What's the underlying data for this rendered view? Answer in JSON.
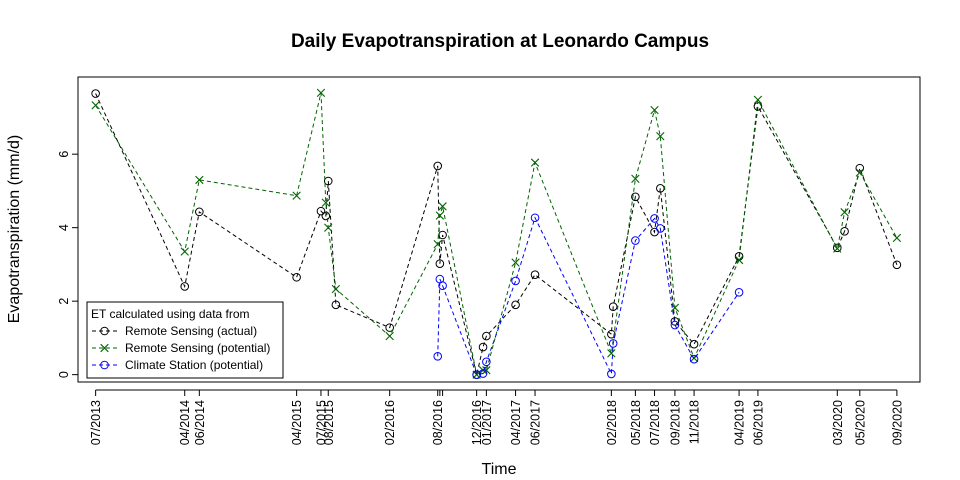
{
  "chart_data": {
    "type": "line",
    "title": "Daily Evapotranspiration at Leonardo Campus",
    "xlabel": "Time",
    "ylabel": "Evapotranspiration (mm/d)",
    "ylim": [
      -0.2,
      8.1
    ],
    "yticks": [
      0,
      2,
      4,
      6
    ],
    "xticks": [
      {
        "date": "2013-07-05",
        "label": "07/2013"
      },
      {
        "date": "2014-04-24",
        "label": "04/2014"
      },
      {
        "date": "2014-06-11",
        "label": "06/2014"
      },
      {
        "date": "2015-04-27",
        "label": "04/2015"
      },
      {
        "date": "2015-07-16",
        "label": "07/2015"
      },
      {
        "date": "2015-08-09",
        "label": "08/2015"
      },
      {
        "date": "2016-02-27",
        "label": "02/2016"
      },
      {
        "date": "2016-08-03",
        "label": "08/2016"
      },
      {
        "date": "2016-08-10",
        "label": ""
      },
      {
        "date": "2016-08-19",
        "label": ""
      },
      {
        "date": "2016-12-09",
        "label": "12/2016"
      },
      {
        "date": "2017-01-10",
        "label": "01/2017"
      },
      {
        "date": "2017-04-16",
        "label": "04/2017"
      },
      {
        "date": "2017-06-19",
        "label": "06/2017"
      },
      {
        "date": "2018-02-25",
        "label": "02/2018"
      },
      {
        "date": "2018-05-15",
        "label": "05/2018"
      },
      {
        "date": "2018-07-17",
        "label": "07/2018"
      },
      {
        "date": "2018-09-22",
        "label": "09/2018"
      },
      {
        "date": "2018-11-24",
        "label": "11/2018"
      },
      {
        "date": "2019-04-21",
        "label": "04/2019"
      },
      {
        "date": "2019-06-22",
        "label": "06/2019"
      },
      {
        "date": "2020-03-09",
        "label": "03/2020"
      },
      {
        "date": "2020-05-22",
        "label": "05/2020"
      },
      {
        "date": "2020-09-21",
        "label": "09/2020"
      }
    ],
    "series": [
      {
        "name": "Remote Sensing (actual)",
        "color": "#000000",
        "marker": "circle",
        "points": [
          [
            "2013-07-05",
            7.65
          ],
          [
            "2014-04-24",
            2.4
          ],
          [
            "2014-06-11",
            4.43
          ],
          [
            "2015-04-27",
            2.65
          ],
          [
            "2015-07-16",
            4.45
          ],
          [
            "2015-08-01",
            4.32
          ],
          [
            "2015-08-09",
            5.27
          ],
          [
            "2015-09-03",
            1.9
          ],
          [
            "2016-02-27",
            1.28
          ],
          [
            "2016-08-03",
            5.68
          ],
          [
            "2016-08-10",
            3.02
          ],
          [
            "2016-08-19",
            3.8
          ],
          [
            "2016-12-09",
            0.0
          ],
          [
            "2016-12-30",
            0.75
          ],
          [
            "2017-01-10",
            1.05
          ],
          [
            "2017-04-16",
            1.9
          ],
          [
            "2017-06-19",
            2.72
          ],
          [
            "2018-02-25",
            1.1
          ],
          [
            "2018-03-03",
            1.85
          ],
          [
            "2018-05-15",
            4.84
          ],
          [
            "2018-07-17",
            3.88
          ],
          [
            "2018-08-05",
            5.07
          ],
          [
            "2018-09-22",
            1.45
          ],
          [
            "2018-11-24",
            0.83
          ],
          [
            "2019-04-21",
            3.22
          ],
          [
            "2019-06-22",
            7.3
          ],
          [
            "2020-03-09",
            3.45
          ],
          [
            "2020-04-02",
            3.9
          ],
          [
            "2020-05-22",
            5.62
          ],
          [
            "2020-09-21",
            2.99
          ]
        ]
      },
      {
        "name": "Remote Sensing (potential)",
        "color": "#006400",
        "marker": "cross",
        "points": [
          [
            "2013-07-05",
            7.33
          ],
          [
            "2014-04-24",
            3.35
          ],
          [
            "2014-06-11",
            5.3
          ],
          [
            "2015-04-27",
            4.87
          ],
          [
            "2015-07-16",
            7.67
          ],
          [
            "2015-08-01",
            4.68
          ],
          [
            "2015-08-09",
            4.0
          ],
          [
            "2015-09-03",
            2.33
          ],
          [
            "2016-02-27",
            1.05
          ],
          [
            "2016-08-03",
            3.55
          ],
          [
            "2016-08-10",
            4.33
          ],
          [
            "2016-08-19",
            4.58
          ],
          [
            "2016-12-09",
            0.0
          ],
          [
            "2016-12-30",
            0.12
          ],
          [
            "2017-01-10",
            0.12
          ],
          [
            "2017-04-16",
            3.05
          ],
          [
            "2017-06-19",
            5.77
          ],
          [
            "2018-02-25",
            0.58
          ],
          [
            "2018-05-15",
            5.33
          ],
          [
            "2018-07-17",
            7.2
          ],
          [
            "2018-08-05",
            6.49
          ],
          [
            "2018-09-22",
            1.82
          ],
          [
            "2018-11-24",
            0.45
          ],
          [
            "2019-04-21",
            3.12
          ],
          [
            "2019-06-22",
            7.48
          ],
          [
            "2020-03-09",
            3.43
          ],
          [
            "2020-04-02",
            4.42
          ],
          [
            "2020-05-22",
            5.5
          ],
          [
            "2020-09-21",
            3.72
          ]
        ]
      },
      {
        "name": "Climate Station (potential)",
        "color": "#0000ff",
        "marker": "circle",
        "points": [
          [
            "2016-08-03",
            0.5
          ],
          [
            "2016-08-10",
            2.6
          ],
          [
            "2016-08-19",
            2.42
          ],
          [
            "2016-12-09",
            0.0
          ],
          [
            "2016-12-30",
            0.03
          ],
          [
            "2017-01-10",
            0.35
          ],
          [
            "2017-04-16",
            2.55
          ],
          [
            "2017-06-19",
            4.27
          ],
          [
            "2018-02-25",
            0.02
          ],
          [
            "2018-03-03",
            0.85
          ],
          [
            "2018-05-15",
            3.65
          ],
          [
            "2018-07-17",
            4.25
          ],
          [
            "2018-08-05",
            3.98
          ],
          [
            "2018-09-22",
            1.35
          ],
          [
            "2018-11-24",
            0.42
          ],
          [
            "2019-04-21",
            2.24
          ]
        ]
      }
    ],
    "legend": {
      "title": "ET calculated using data from",
      "position": "bottom-left"
    }
  }
}
